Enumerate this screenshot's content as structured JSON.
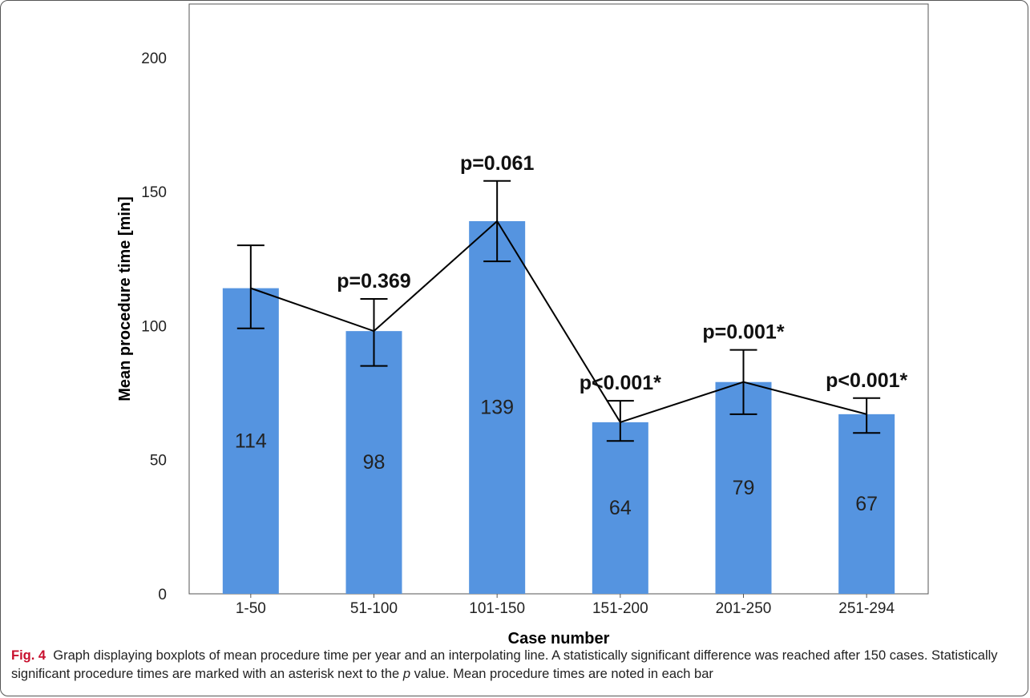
{
  "chart_data": {
    "type": "bar",
    "categories": [
      "1-50",
      "51-100",
      "101-150",
      "151-200",
      "201-250",
      "251-294"
    ],
    "values": [
      114,
      98,
      139,
      64,
      79,
      67
    ],
    "error_bars": [
      {
        "low": 99,
        "high": 130
      },
      {
        "low": 85,
        "high": 110
      },
      {
        "low": 124,
        "high": 154
      },
      {
        "low": 57,
        "high": 72
      },
      {
        "low": 67,
        "high": 91
      },
      {
        "low": 60,
        "high": 73
      }
    ],
    "p_labels": [
      "",
      "p=0.369",
      "p=0.061",
      "p<0.001*",
      "p=0.001*",
      "p<0.001*"
    ],
    "xlabel": "Case number",
    "ylabel": "Mean procedure time [min]",
    "ylim": [
      0,
      220
    ],
    "yticks": [
      0,
      50,
      100,
      150,
      200
    ],
    "grid": false,
    "line_through_means": true,
    "bar_color": "#5594e0",
    "line_color": "#000000"
  },
  "caption": {
    "fig_label": "Fig. 4",
    "text_before_p": "Graph displaying boxplots of mean procedure time per year and an interpolating line. A statistically significant difference was reached after 150 cases. Statistically significant procedure times are marked with an asterisk next to the ",
    "p_italic": "p",
    "text_after_p": " value. Mean procedure times are noted in each bar"
  }
}
